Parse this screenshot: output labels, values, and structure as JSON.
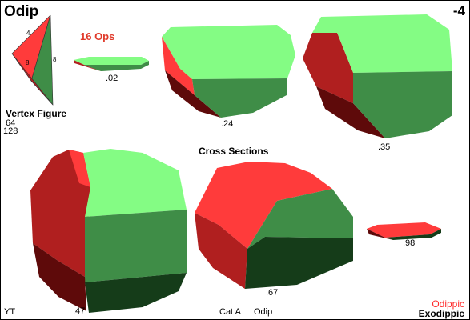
{
  "header": {
    "title": "Odip",
    "code": "-4",
    "ops": "16 Ops"
  },
  "vertex_figure": {
    "title": "Vertex Figure",
    "vertices": "64",
    "edges": "128",
    "labels": [
      "4",
      "8",
      "8"
    ]
  },
  "cross_sections": {
    "title": "Cross Sections",
    "labels": [
      ".02",
      ".24",
      ".35",
      ".47",
      ".67",
      ".98"
    ]
  },
  "footer": {
    "left": "YT",
    "category": "Cat A",
    "short_name": "Odip",
    "name_red": "Odippic",
    "name_black": "Exodippic"
  },
  "colors": {
    "light_green": "#84fc84",
    "dark_green": "#3f8d47",
    "darkest_green": "#153c19",
    "red": "#ff3b3b",
    "dark_red": "#b01f1f",
    "darkest_red": "#5e0a0a"
  }
}
